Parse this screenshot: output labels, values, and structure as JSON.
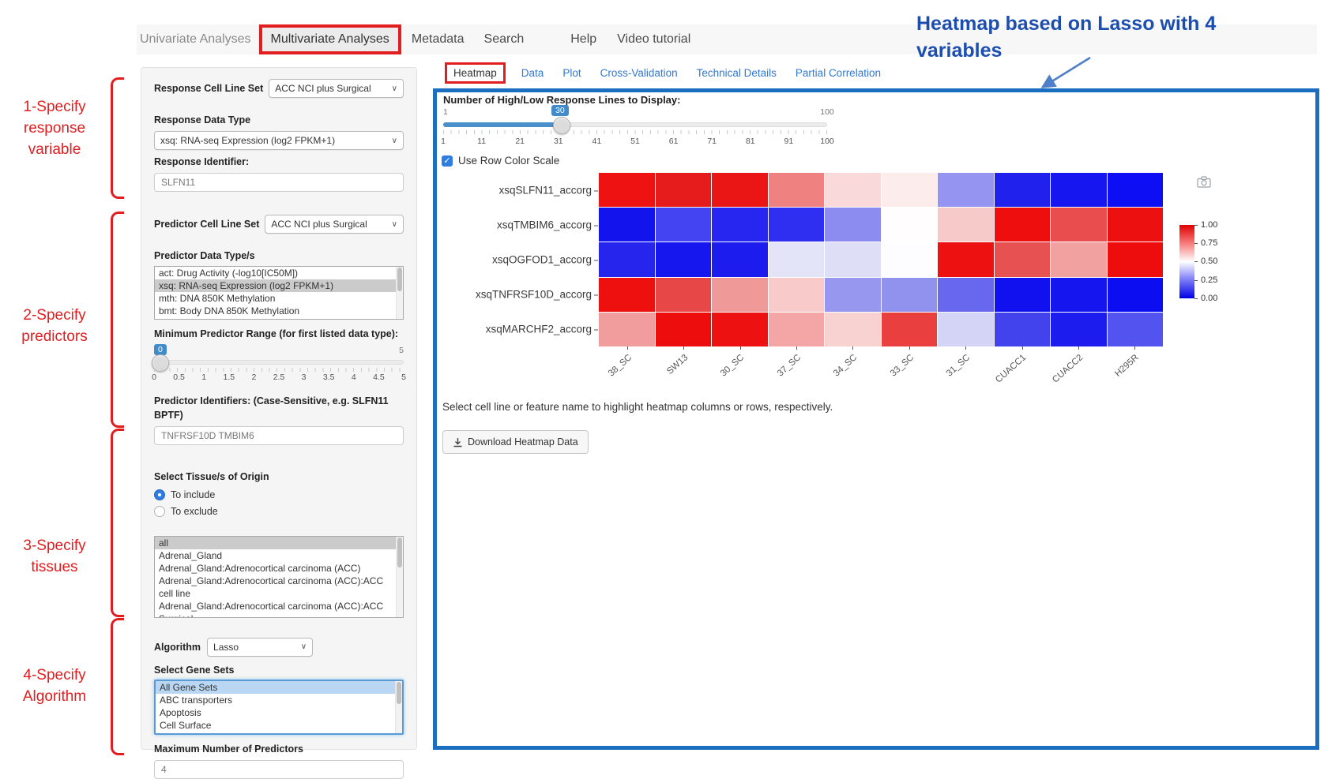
{
  "nav": {
    "items": [
      "Univariate Analyses",
      "Multivariate Analyses",
      "Metadata",
      "Search",
      "Help",
      "Video tutorial"
    ],
    "active": "Multivariate Analyses"
  },
  "annotations": {
    "red_color": "#e21d1f",
    "blue_color": "#1c4eb0",
    "note": {
      "line1": "Heatmap based on Lasso with 4",
      "line2": "variables"
    },
    "brackets": [
      {
        "lines": [
          "1-Specify",
          "response",
          "variable"
        ]
      },
      {
        "lines": [
          "2-Specify",
          "predictors"
        ]
      },
      {
        "lines": [
          "3-Specify",
          "tissues"
        ]
      },
      {
        "lines": [
          "4-Specify",
          "Algorithm"
        ]
      }
    ]
  },
  "sidebar": {
    "response_cell_line_set_label": "Response Cell Line Set",
    "response_cell_line_set": "ACC NCI plus Surgical",
    "response_data_type_label": "Response Data Type",
    "response_data_type": "xsq: RNA-seq Expression (log2 FPKM+1)",
    "response_identifier_label": "Response Identifier:",
    "response_identifier": "SLFN11",
    "predictor_cell_line_set_label": "Predictor Cell Line Set",
    "predictor_cell_line_set": "ACC NCI plus Surgical",
    "predictor_data_types_label": "Predictor Data Type/s",
    "predictor_data_types": [
      "act: Drug Activity (-log10[IC50M])",
      "xsq: RNA-seq Expression (log2 FPKM+1)",
      "mth: DNA 850K Methylation",
      "bmt: Body DNA 850K Methylation"
    ],
    "predictor_data_types_selected": 1,
    "min_predictor_range_label": "Minimum Predictor Range (for first listed data type):",
    "min_range_slider": {
      "value": "0",
      "max_label": "5",
      "ticks": [
        "0",
        "0.5",
        "1",
        "1.5",
        "2",
        "2.5",
        "3",
        "3.5",
        "4",
        "4.5",
        "5"
      ]
    },
    "predictor_identifiers_label": "Predictor Identifiers: (Case-Sensitive, e.g. SLFN11 BPTF)",
    "predictor_identifiers": "TNFRSF10D TMBIM6",
    "tissue_label": "Select Tissue/s of Origin",
    "tissue_radio_include": "To include",
    "tissue_radio_exclude": "To exclude",
    "tissue_radio_selected": "To include",
    "tissues": [
      "all",
      "Adrenal_Gland",
      "Adrenal_Gland:Adrenocortical carcinoma (ACC)",
      "Adrenal_Gland:Adrenocortical carcinoma (ACC):ACC cell line",
      "Adrenal_Gland:Adrenocortical carcinoma (ACC):ACC Surgical"
    ],
    "tissues_selected": 0,
    "algorithm_label": "Algorithm",
    "algorithm": "Lasso",
    "gene_sets_label": "Select Gene Sets",
    "gene_sets": [
      "All Gene Sets",
      "ABC transporters",
      "Apoptosis",
      "Cell Surface"
    ],
    "gene_sets_selected": 0,
    "max_predictors_label": "Maximum Number of Predictors",
    "max_predictors": "4"
  },
  "main": {
    "tabs": [
      "Heatmap",
      "Data",
      "Plot",
      "Cross-Validation",
      "Technical Details",
      "Partial Correlation"
    ],
    "active_tab": "Heatmap",
    "slider": {
      "label": "Number of High/Low Response Lines to Display:",
      "min_label": "1",
      "max_label": "100",
      "value": "30",
      "ticks": [
        "1",
        "11",
        "21",
        "31",
        "41",
        "51",
        "61",
        "71",
        "81",
        "91",
        "100"
      ]
    },
    "row_color_checkbox_label": "Use Row Color Scale",
    "row_color_checkbox_checked": true,
    "check_glyph": "✓",
    "help_text": "Select cell line or feature name to highlight heatmap columns or rows, respectively.",
    "download_button": "Download Heatmap Data"
  },
  "colors": {
    "panel_border": "#1b6fc1",
    "link_blue": "#3178d0",
    "slider_blue": "#428bca",
    "selected_gray": "#cbcbcb",
    "selected_blue": "#b9d7f3",
    "checkbox_blue": "#2f7de1"
  },
  "chart_data": {
    "type": "heatmap",
    "title": "",
    "colorscale": "blue-white-red, row-scaled 0 to 1",
    "columns": [
      "38_SC",
      "SW13",
      "30_SC",
      "37_SC",
      "34_SC",
      "33_SC",
      "31_SC",
      "CUACC1",
      "CUACC2",
      "H295R"
    ],
    "rows": [
      "xsqSLFN11_accorg",
      "xsqTMBIM6_accorg",
      "xsqOGFOD1_accorg",
      "xsqTNFRSF10D_accorg",
      "xsqMARCHF2_accorg"
    ],
    "values": [
      [
        0.98,
        0.95,
        0.96,
        0.74,
        0.57,
        0.53,
        0.3,
        0.04,
        0.03,
        0.02
      ],
      [
        0.02,
        0.13,
        0.06,
        0.08,
        0.27,
        0.5,
        0.6,
        0.97,
        0.83,
        0.97
      ],
      [
        0.06,
        0.03,
        0.04,
        0.45,
        0.43,
        0.5,
        0.96,
        0.82,
        0.69,
        0.97
      ],
      [
        0.97,
        0.82,
        0.7,
        0.6,
        0.3,
        0.28,
        0.21,
        0.02,
        0.03,
        0.02
      ],
      [
        0.7,
        0.97,
        0.96,
        0.68,
        0.58,
        0.86,
        0.42,
        0.13,
        0.03,
        0.17
      ]
    ],
    "colors": [
      [
        "#ee1212",
        "#e61b1b",
        "#ea1616",
        "#f08181",
        "#f9d9d9",
        "#fcecec",
        "#9595f1",
        "#2121ee",
        "#1616f0",
        "#0e0ef4"
      ],
      [
        "#1313ee",
        "#4444f3",
        "#2626f0",
        "#2f2ff2",
        "#8b8bf0",
        "#fffdfd",
        "#f7caca",
        "#ee0e0e",
        "#e94d4d",
        "#ed1010"
      ],
      [
        "#2525ee",
        "#1616ee",
        "#1c1cee",
        "#e4e4f8",
        "#dedef6",
        "#fdfdff",
        "#ee1111",
        "#e85151",
        "#f2a1a1",
        "#ee0d0d"
      ],
      [
        "#ee0f0f",
        "#e84747",
        "#f09999",
        "#f8caca",
        "#9797f0",
        "#9191ee",
        "#6868ee",
        "#1111f0",
        "#1515f0",
        "#0d0df2"
      ],
      [
        "#f29d9d",
        "#ee0d0d",
        "#ee1111",
        "#f4a5a5",
        "#f8d1d1",
        "#e93f3f",
        "#d4d4f6",
        "#4343ee",
        "#1c1cee",
        "#5353f0"
      ]
    ],
    "colorbar": {
      "ticks": [
        "1.00",
        "0.75",
        "0.50",
        "0.25",
        "0.00"
      ]
    },
    "legend_position": "right",
    "xlabel": "",
    "ylabel": ""
  }
}
